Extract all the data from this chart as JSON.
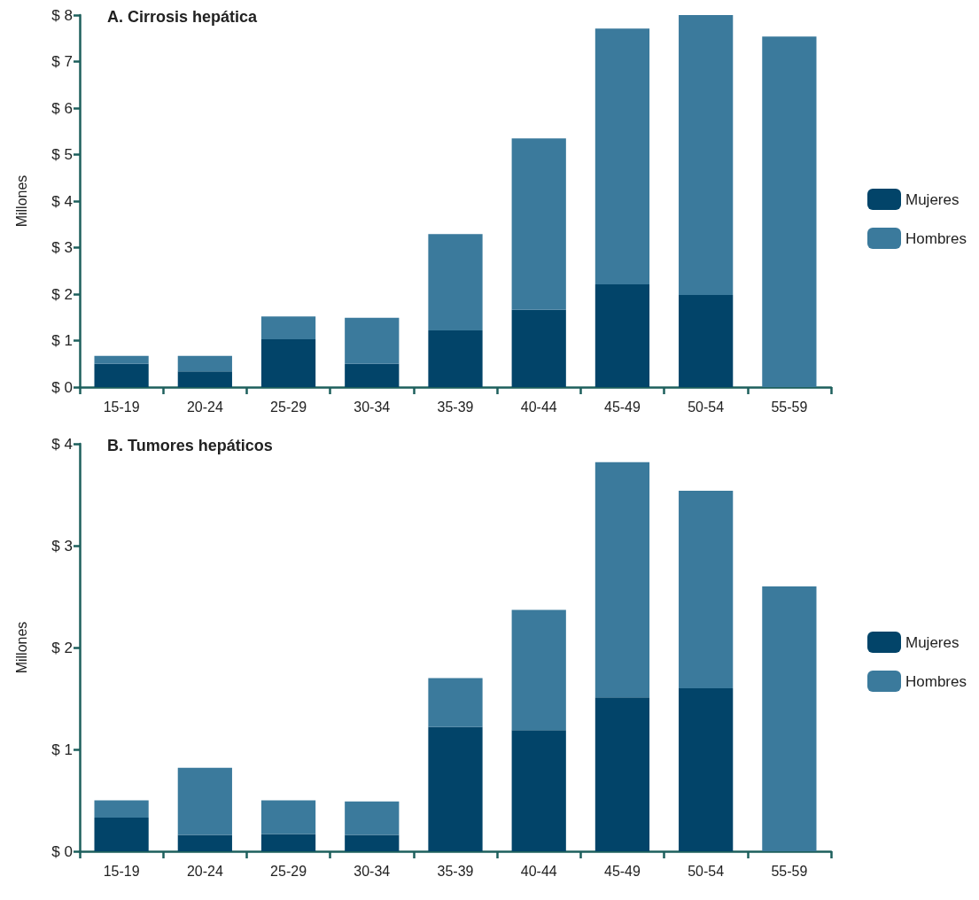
{
  "chart_data": [
    {
      "type": "bar",
      "title": "A. Cirrosis hepática",
      "ylabel": "Millones",
      "stacked": true,
      "legend": "right",
      "grid": false,
      "categories": [
        "15-19",
        "20-24",
        "25-29",
        "30-34",
        "35-39",
        "40-44",
        "45-49",
        "50-54",
        "55-59"
      ],
      "ylim": [
        0,
        8
      ],
      "yticks": [
        {
          "value": 0,
          "label": "$ 0"
        },
        {
          "value": 1,
          "label": "$ 1"
        },
        {
          "value": 2,
          "label": "$ 2"
        },
        {
          "value": 3,
          "label": "$ 3"
        },
        {
          "value": 4,
          "label": "$ 4"
        },
        {
          "value": 5,
          "label": "$ 5"
        },
        {
          "value": 6,
          "label": "$ 6"
        },
        {
          "value": 7,
          "label": "$ 7"
        },
        {
          "value": 8,
          "label": "$ 8"
        }
      ],
      "series": [
        {
          "name": "Mujeres",
          "color": "#024469",
          "values": [
            0.5,
            0.34,
            1.03,
            0.5,
            1.22,
            1.66,
            2.21,
            1.98,
            0
          ]
        },
        {
          "name": "Hombres",
          "color": "#3b7a9c",
          "values": [
            0.17,
            0.33,
            0.49,
            0.99,
            2.07,
            3.69,
            5.5,
            6.04,
            7.54
          ]
        }
      ]
    },
    {
      "type": "bar",
      "title": "B. Tumores hepáticos",
      "ylabel": "Millones",
      "stacked": true,
      "legend": "right",
      "grid": false,
      "categories": [
        "15-19",
        "20-24",
        "25-29",
        "30-34",
        "35-39",
        "40-44",
        "45-49",
        "50-54",
        "55-59"
      ],
      "ylim": [
        0,
        4
      ],
      "yticks": [
        {
          "value": 0,
          "label": "$ 0"
        },
        {
          "value": 1,
          "label": "$ 1"
        },
        {
          "value": 2,
          "label": "$ 2"
        },
        {
          "value": 3,
          "label": "$ 3"
        },
        {
          "value": 4,
          "label": "$ 4"
        }
      ],
      "series": [
        {
          "name": "Mujeres",
          "color": "#024469",
          "values": [
            0.33,
            0.16,
            0.17,
            0.16,
            1.22,
            1.19,
            1.51,
            1.6,
            0
          ]
        },
        {
          "name": "Hombres",
          "color": "#3b7a9c",
          "values": [
            0.17,
            0.66,
            0.33,
            0.33,
            0.48,
            1.18,
            2.31,
            1.94,
            2.6
          ]
        }
      ]
    }
  ]
}
